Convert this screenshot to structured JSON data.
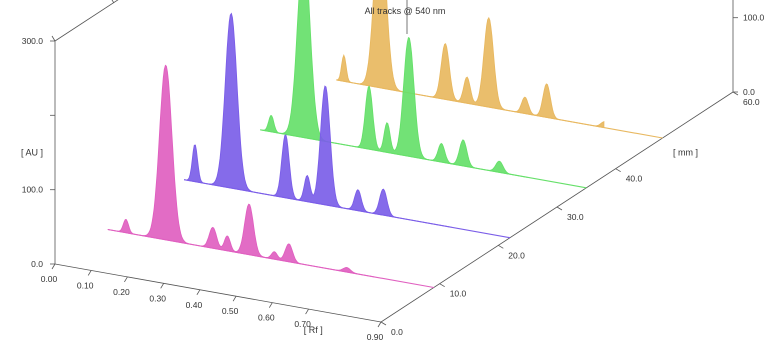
{
  "chart_data": {
    "type": "area",
    "title": "All tracks @ 540 nm",
    "x_axis": {
      "label": "[ Rf ]",
      "range": [
        0.0,
        0.9
      ],
      "ticks": [
        "0.00",
        "0.10",
        "0.20",
        "0.30",
        "0.40",
        "0.50",
        "0.60",
        "0.70",
        "0.90"
      ],
      "tick_values": [
        0.0,
        0.1,
        0.2,
        0.3,
        0.4,
        0.5,
        0.6,
        0.7,
        0.9
      ]
    },
    "z_axis": {
      "label": "[ mm ]",
      "range": [
        0.0,
        60.0
      ],
      "ticks": [
        "0.0",
        "10.0",
        "20.0",
        "30.0",
        "40.0",
        "60.0"
      ],
      "tick_values": [
        0,
        10,
        20,
        30,
        40,
        60
      ]
    },
    "y_axis": {
      "label": "[ AU ]",
      "range": [
        0.0,
        300.0
      ],
      "ticks": [
        "0.0",
        "100.0",
        "300.0"
      ],
      "tick_values": [
        0,
        100,
        300
      ]
    },
    "grid": false,
    "legend": "none",
    "series": [
      {
        "color": "#e060c0",
        "track_mm": 9,
        "peaks": [
          {
            "rf": 0.05,
            "height": 18,
            "width": 0.007
          },
          {
            "rf": 0.16,
            "height": 235,
            "width": 0.017
          },
          {
            "rf": 0.29,
            "height": 28,
            "width": 0.01
          },
          {
            "rf": 0.33,
            "height": 20,
            "width": 0.008
          },
          {
            "rf": 0.39,
            "height": 68,
            "width": 0.012
          },
          {
            "rf": 0.46,
            "height": 10,
            "width": 0.008
          },
          {
            "rf": 0.5,
            "height": 24,
            "width": 0.01
          },
          {
            "rf": 0.66,
            "height": 6,
            "width": 0.01
          }
        ]
      },
      {
        "color": "#7b5ee8",
        "track_mm": 22,
        "peaks": [
          {
            "rf": 0.03,
            "height": 50,
            "width": 0.007
          },
          {
            "rf": 0.13,
            "height": 235,
            "width": 0.016
          },
          {
            "rf": 0.28,
            "height": 85,
            "width": 0.01
          },
          {
            "rf": 0.34,
            "height": 35,
            "width": 0.008
          },
          {
            "rf": 0.39,
            "height": 160,
            "width": 0.013
          },
          {
            "rf": 0.48,
            "height": 28,
            "width": 0.009
          },
          {
            "rf": 0.55,
            "height": 35,
            "width": 0.01
          }
        ]
      },
      {
        "color": "#66e06a",
        "track_mm": 35,
        "peaks": [
          {
            "rf": 0.03,
            "height": 22,
            "width": 0.007
          },
          {
            "rf": 0.12,
            "height": 255,
            "width": 0.017
          },
          {
            "rf": 0.3,
            "height": 85,
            "width": 0.01
          },
          {
            "rf": 0.35,
            "height": 40,
            "width": 0.008
          },
          {
            "rf": 0.41,
            "height": 160,
            "width": 0.014
          },
          {
            "rf": 0.5,
            "height": 25,
            "width": 0.009
          },
          {
            "rf": 0.56,
            "height": 35,
            "width": 0.01
          },
          {
            "rf": 0.66,
            "height": 15,
            "width": 0.01
          }
        ]
      },
      {
        "color": "#e8b860",
        "track_mm": 48,
        "peaks": [
          {
            "rf": 0.02,
            "height": 35,
            "width": 0.006
          },
          {
            "rf": 0.12,
            "height": 230,
            "width": 0.016
          },
          {
            "rf": 0.3,
            "height": 75,
            "width": 0.011
          },
          {
            "rf": 0.36,
            "height": 35,
            "width": 0.009
          },
          {
            "rf": 0.42,
            "height": 120,
            "width": 0.013
          },
          {
            "rf": 0.52,
            "height": 22,
            "width": 0.009
          },
          {
            "rf": 0.58,
            "height": 45,
            "width": 0.01
          },
          {
            "rf": 0.74,
            "height": 8,
            "width": 0.01
          }
        ]
      }
    ]
  }
}
